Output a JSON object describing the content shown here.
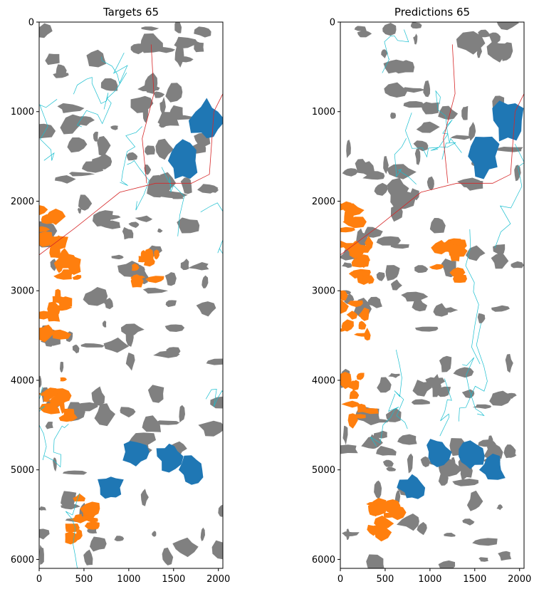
{
  "colors": {
    "water": "#1f77b4",
    "wetland": "#ff7f0e",
    "gray_class": "#808080",
    "stream": "#17becf",
    "road": "#d62728",
    "background": "#ffffff"
  },
  "chart_data": [
    {
      "type": "heatmap",
      "title": "Targets 65",
      "xlabel": "",
      "ylabel": "",
      "xlim": [
        0,
        2050
      ],
      "ylim": [
        6100,
        0
      ],
      "xticks": [
        0,
        500,
        1000,
        1500,
        2000
      ],
      "yticks": [
        0,
        1000,
        2000,
        3000,
        4000,
        5000,
        6000
      ],
      "grid": false,
      "classes": [
        "background",
        "gray_class",
        "water",
        "wetland",
        "stream",
        "road"
      ],
      "water_blobs": [
        [
          1600,
          1550
        ],
        [
          1870,
          1100
        ],
        [
          1450,
          4850
        ],
        [
          1700,
          5000
        ],
        [
          800,
          5200
        ],
        [
          1080,
          4800
        ]
      ],
      "wetland_blobs": [
        [
          100,
          2300
        ],
        [
          300,
          2650
        ],
        [
          150,
          3300
        ],
        [
          200,
          4200
        ],
        [
          500,
          5550
        ],
        [
          1200,
          2700
        ]
      ]
    },
    {
      "type": "heatmap",
      "title": "Predictions 65",
      "xlabel": "",
      "ylabel": "",
      "xlim": [
        0,
        2050
      ],
      "ylim": [
        6100,
        0
      ],
      "xticks": [
        0,
        500,
        1000,
        1500,
        2000
      ],
      "yticks": [
        0,
        1000,
        2000,
        3000,
        4000,
        5000,
        6000
      ],
      "grid": false,
      "classes": [
        "background",
        "gray_class",
        "water",
        "wetland",
        "stream",
        "road"
      ],
      "water_blobs": [
        [
          1600,
          1500
        ],
        [
          1870,
          1100
        ],
        [
          1450,
          4850
        ],
        [
          1700,
          5000
        ],
        [
          800,
          5200
        ],
        [
          1080,
          4800
        ]
      ],
      "wetland_blobs": [
        [
          100,
          2300
        ],
        [
          300,
          2650
        ],
        [
          150,
          3300
        ],
        [
          200,
          4200
        ],
        [
          500,
          5550
        ],
        [
          1200,
          2700
        ]
      ]
    }
  ]
}
